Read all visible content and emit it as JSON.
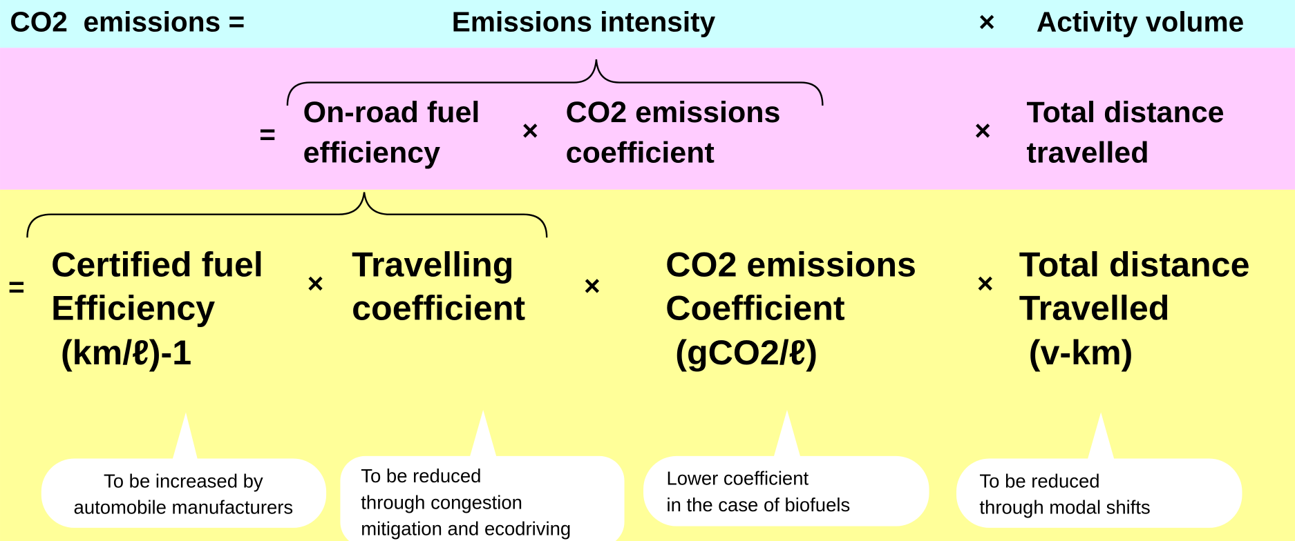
{
  "row1": {
    "lhs": "CO2  emissions =",
    "intensity": "Emissions intensity",
    "times": "×",
    "activity": "Activity volume"
  },
  "row2": {
    "equals": "=",
    "fuel_efficiency": [
      "On-road fuel",
      "efficiency"
    ],
    "times_1": "×",
    "coefficient": [
      "CO2 emissions",
      "coefficient"
    ],
    "times_2": "×",
    "distance": [
      "Total distance",
      "travelled"
    ]
  },
  "row3": {
    "equals": "=",
    "certified": [
      "Certified fuel",
      "Efficiency",
      " (km/ℓ)-1"
    ],
    "times_1": "×",
    "travelling": [
      "Travelling",
      "coefficient"
    ],
    "times_2": "×",
    "coefficient": [
      "CO2 emissions",
      "Coefficient",
      " (gCO2/ℓ)"
    ],
    "times_3": "×",
    "distance": [
      "Total distance",
      "Travelled",
      " (v-km)"
    ]
  },
  "callouts": [
    [
      "To be increased by",
      "automobile manufacturers"
    ],
    [
      "To be reduced",
      "through congestion",
      "mitigation and ecodriving"
    ],
    [
      "Lower coefficient",
      "in the case of biofuels"
    ],
    [
      "To be reduced",
      "through modal shifts"
    ]
  ]
}
